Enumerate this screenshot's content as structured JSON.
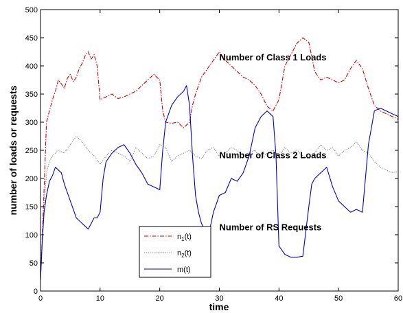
{
  "chart_data": {
    "type": "line",
    "xlabel": "time",
    "ylabel": "number of loads or requests",
    "xlim": [
      0,
      60
    ],
    "ylim": [
      0,
      500
    ],
    "xticks": [
      0,
      10,
      20,
      30,
      40,
      50,
      60
    ],
    "yticks": [
      0,
      50,
      100,
      150,
      200,
      250,
      300,
      350,
      400,
      450,
      500
    ],
    "grid": false,
    "legend_position": "lower-left-center",
    "annotations": [
      {
        "text": "Number of Class 1 Loads",
        "x": 30,
        "y": 410
      },
      {
        "text": "Number of Class 2 Loads",
        "x": 30,
        "y": 236
      },
      {
        "text": "Number of RS Requests",
        "x": 30,
        "y": 108
      }
    ],
    "series": [
      {
        "name": "n₁(t)",
        "legend_main": "n",
        "legend_sub": "1",
        "legend_tail": "(t)",
        "color": "#cc0000",
        "style": "dashdot",
        "x": [
          0,
          0.5,
          1,
          1.5,
          2,
          2.5,
          3,
          3.5,
          4,
          4.5,
          5,
          5.5,
          6,
          6.5,
          7,
          7.5,
          8,
          8.5,
          9,
          9.5,
          10,
          11,
          12,
          13,
          14,
          15,
          16,
          17,
          18,
          19,
          20,
          20.5,
          21,
          22,
          23,
          24,
          25,
          25.5,
          26,
          27,
          28,
          29,
          30,
          31,
          32,
          33,
          34,
          35,
          36,
          37,
          38,
          39,
          40,
          41,
          42,
          43,
          44,
          45,
          46,
          47,
          48,
          49,
          50,
          51,
          52,
          53,
          54,
          55,
          56,
          57,
          58,
          59,
          60
        ],
        "values": [
          20,
          150,
          300,
          320,
          340,
          355,
          375,
          368,
          360,
          378,
          385,
          372,
          380,
          395,
          405,
          418,
          425,
          412,
          420,
          400,
          340,
          345,
          350,
          342,
          345,
          350,
          355,
          365,
          375,
          385,
          375,
          320,
          300,
          298,
          300,
          290,
          300,
          330,
          350,
          380,
          395,
          410,
          425,
          410,
          400,
          390,
          380,
          375,
          365,
          350,
          328,
          320,
          340,
          400,
          420,
          440,
          450,
          442,
          390,
          375,
          380,
          375,
          370,
          375,
          395,
          410,
          395,
          360,
          330,
          320,
          315,
          310,
          305
        ]
      },
      {
        "name": "n₂(t)",
        "legend_main": "n",
        "legend_sub": "2",
        "legend_tail": "(t)",
        "color": "#7f7f7f",
        "style": "dotted",
        "x": [
          0,
          0.5,
          1,
          1.5,
          2,
          3,
          4,
          5,
          6,
          7,
          8,
          9,
          10,
          11,
          12,
          13,
          14,
          15,
          16,
          17,
          18,
          19,
          20,
          21,
          22,
          23,
          24,
          25,
          26,
          27,
          28,
          29,
          30,
          31,
          32,
          33,
          34,
          35,
          36,
          37,
          38,
          39,
          40,
          41,
          42,
          43,
          44,
          45,
          46,
          47,
          48,
          49,
          50,
          51,
          52,
          53,
          54,
          55,
          56,
          57,
          58,
          59,
          60
        ],
        "values": [
          20,
          130,
          210,
          230,
          240,
          250,
          245,
          260,
          275,
          265,
          250,
          240,
          225,
          240,
          250,
          245,
          240,
          230,
          255,
          245,
          235,
          240,
          260,
          255,
          230,
          240,
          245,
          250,
          240,
          235,
          250,
          255,
          240,
          245,
          255,
          250,
          240,
          245,
          250,
          235,
          245,
          250,
          240,
          255,
          245,
          250,
          240,
          235,
          245,
          260,
          250,
          255,
          240,
          250,
          255,
          265,
          250,
          245,
          230,
          220,
          215,
          210,
          212
        ]
      },
      {
        "name": "m(t)",
        "legend_main": "m(t)",
        "legend_sub": "",
        "legend_tail": "",
        "color": "#0000cc",
        "style": "solid",
        "x": [
          0,
          0.3,
          0.6,
          1,
          1.5,
          2,
          2.5,
          3,
          3.5,
          4,
          4.5,
          5,
          5.5,
          6,
          6.5,
          7,
          7.5,
          8,
          8.5,
          9,
          9.5,
          10,
          10.5,
          11,
          12,
          13,
          14,
          15,
          16,
          17,
          18,
          19,
          20,
          20.5,
          21,
          22,
          23,
          24,
          24.5,
          25,
          25.5,
          26,
          26.5,
          27,
          27.5,
          28,
          28.5,
          29,
          30,
          31,
          32,
          33,
          34,
          35,
          36,
          37,
          38,
          38.5,
          39,
          39.5,
          40,
          41,
          42,
          43,
          44,
          45,
          45.5,
          46,
          47,
          48,
          49,
          50,
          51,
          52,
          53,
          54,
          55,
          56,
          57,
          58,
          59,
          60
        ],
        "values": [
          20,
          90,
          140,
          170,
          195,
          205,
          220,
          215,
          210,
          190,
          175,
          160,
          145,
          130,
          125,
          120,
          115,
          110,
          120,
          130,
          130,
          140,
          200,
          230,
          245,
          255,
          260,
          245,
          225,
          210,
          190,
          185,
          180,
          250,
          300,
          330,
          345,
          355,
          365,
          330,
          240,
          170,
          140,
          120,
          110,
          100,
          115,
          140,
          170,
          175,
          200,
          195,
          210,
          240,
          290,
          310,
          320,
          315,
          310,
          240,
          80,
          65,
          60,
          60,
          62,
          150,
          190,
          200,
          210,
          220,
          185,
          160,
          150,
          140,
          145,
          140,
          260,
          320,
          325,
          320,
          315,
          310
        ]
      }
    ]
  }
}
